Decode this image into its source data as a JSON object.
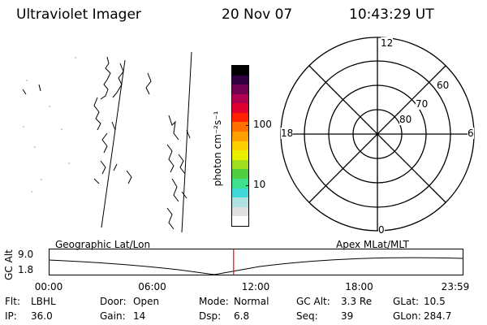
{
  "header": {
    "title": "Ultraviolet Imager",
    "date": "20 Nov 07",
    "time": "10:43:29 UT"
  },
  "colorbar": {
    "unit_label": "photon cm⁻²s⁻¹",
    "ticks": [
      {
        "label": "100",
        "frac": 0.625
      },
      {
        "label": "10",
        "frac": 0.25
      }
    ],
    "colors": [
      "#ffffff",
      "#e0e0e0",
      "#b0e0e0",
      "#40d8d8",
      "#40e090",
      "#50d040",
      "#a0e020",
      "#e8f000",
      "#ffd000",
      "#ffa000",
      "#ff7000",
      "#ff2000",
      "#e00030",
      "#b00050",
      "#700050",
      "#300040",
      "#000000"
    ]
  },
  "polar": {
    "mlt_labels": {
      "top": "12",
      "bottom": "0",
      "left": "18",
      "right": "6"
    },
    "lat_labels": [
      "60",
      "70",
      "80"
    ]
  },
  "timeline": {
    "left_label": "Geographic Lat/Lon",
    "right_label": "Apex MLat/MLT",
    "axis_title": "GC Alt",
    "y_top": "9.0",
    "y_bottom": "1.8",
    "x_ticks": [
      "00:00",
      "06:00",
      "12:00",
      "18:00",
      "23:59"
    ],
    "current_time_hours": 10.72,
    "marker_color": "#ff0000"
  },
  "info": {
    "row1": [
      {
        "label": "Flt:",
        "value": "LBHL"
      },
      {
        "label": "Door:",
        "value": "Open"
      },
      {
        "label": "Mode:",
        "value": "Normal"
      },
      {
        "label": "GC Alt:",
        "value": "3.3 Re"
      },
      {
        "label": "GLat:",
        "value": "10.5"
      }
    ],
    "row2": [
      {
        "label": "IP:",
        "value": "36.0"
      },
      {
        "label": "Gain:",
        "value": "14"
      },
      {
        "label": "Dsp:",
        "value": "6.8"
      },
      {
        "label": "Seq:",
        "value": "39"
      },
      {
        "label": "GLon:",
        "value": "284.7"
      }
    ]
  }
}
